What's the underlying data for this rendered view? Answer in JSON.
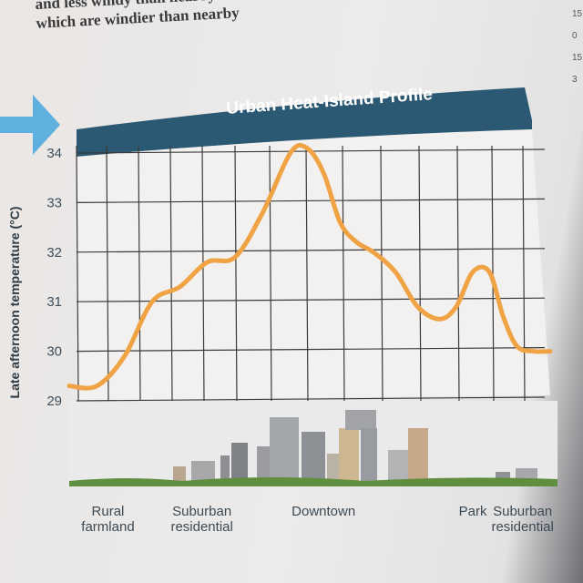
{
  "page": {
    "lines": [
      "and less windy than nearby",
      "which are windier than nearby"
    ],
    "side_numbers": [
      "15",
      "0",
      "15",
      "3"
    ]
  },
  "chart_data": {
    "type": "line",
    "title": "Urban Heat-Island Profile",
    "ylabel": "Late afternoon temperature (°C)",
    "xlabel": "",
    "ylim": [
      29,
      34
    ],
    "yticks": [
      29,
      30,
      31,
      32,
      33,
      34
    ],
    "grid": true,
    "x": [
      0,
      0.5,
      1,
      1.5,
      2,
      2.5,
      3,
      3.5,
      4,
      4.3,
      4.6,
      4.9,
      5.2,
      5.5,
      5.9,
      6.3,
      6.7,
      7.0,
      7.3,
      7.6,
      7.85,
      8.1,
      8.4,
      8.7
    ],
    "series": [
      {
        "values": [
          29.3,
          29.3,
          29.9,
          31.0,
          31.3,
          31.8,
          31.9,
          32.8,
          34.0,
          34.1,
          33.6,
          32.6,
          32.2,
          32.0,
          31.6,
          30.9,
          30.65,
          30.9,
          31.6,
          31.6,
          30.7,
          30.1,
          30.0,
          30.0
        ]
      }
    ],
    "categories": [
      {
        "label": "Rural farmland",
        "x": 0.7
      },
      {
        "label": "Suburban residential",
        "x": 2.4
      },
      {
        "label": "Downtown",
        "x": 4.6
      },
      {
        "label": "Park",
        "x": 7.3
      },
      {
        "label": "Suburban residential",
        "x": 8.2
      }
    ],
    "colors": {
      "line": "#f0a345",
      "banner": "#2b5872",
      "grid": "#3a3a3a",
      "arrow": "#5fb0de"
    }
  }
}
